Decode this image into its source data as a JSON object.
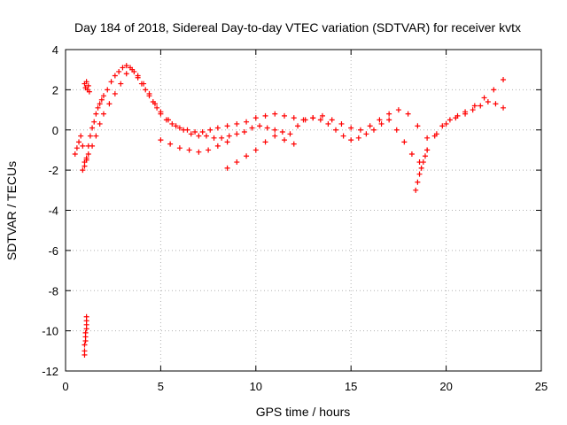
{
  "chart_data": {
    "type": "scatter",
    "title": "Day 184 of 2018, Sidereal Day-to-day VTEC variation (SDTVAR) for receiver kvtx",
    "xlabel": "GPS time / hours",
    "ylabel": "SDTVAR / TECUs",
    "xlim": [
      0,
      25
    ],
    "ylim": [
      -12,
      4
    ],
    "xticks": [
      0,
      5,
      10,
      15,
      20,
      25
    ],
    "yticks": [
      -12,
      -10,
      -8,
      -6,
      -4,
      -2,
      0,
      2,
      4
    ],
    "grid": true,
    "marker": "+",
    "color": "#ff0000",
    "series": [
      {
        "name": "trace-a",
        "x": [
          0.5,
          0.6,
          0.7,
          0.8,
          0.9,
          1.0,
          1.1,
          1.2,
          1.3,
          1.4,
          1.5,
          1.6,
          1.7,
          1.8,
          1.9,
          2.0,
          2.2,
          2.4,
          2.6,
          2.8,
          3.0,
          3.2,
          3.4,
          3.6,
          3.8,
          4.0,
          4.2,
          4.4,
          4.6,
          4.8,
          5.0,
          5.3,
          5.6,
          6.0,
          6.4,
          6.8,
          7.2,
          7.6,
          8.0,
          8.5,
          9.0,
          9.5,
          10.0,
          10.5,
          11.0,
          11.5,
          12.0,
          12.5,
          13.0,
          13.5,
          14.0,
          14.5,
          15.0,
          15.5,
          16.0,
          16.5,
          17.0,
          17.5,
          18.0,
          18.5,
          19.0,
          19.5,
          20.0,
          20.5,
          21.0,
          21.5,
          22.0,
          22.5,
          23.0
        ],
        "y": [
          -1.2,
          -0.9,
          -0.6,
          -0.3,
          -0.8,
          -1.6,
          -1.4,
          -0.8,
          -0.3,
          0.1,
          0.4,
          0.8,
          1.1,
          1.3,
          1.5,
          1.7,
          2.0,
          2.4,
          2.7,
          2.9,
          3.1,
          3.2,
          3.1,
          2.9,
          2.6,
          2.3,
          2.0,
          1.7,
          1.4,
          1.1,
          0.8,
          0.5,
          0.3,
          0.1,
          0.0,
          -0.1,
          -0.1,
          0.0,
          0.1,
          0.2,
          0.3,
          0.4,
          0.6,
          0.7,
          0.8,
          0.7,
          0.6,
          0.5,
          0.6,
          0.7,
          0.5,
          0.3,
          0.1,
          0.0,
          0.2,
          0.5,
          0.8,
          1.0,
          0.8,
          0.2,
          -0.4,
          -0.2,
          0.3,
          0.6,
          0.9,
          1.2,
          1.6,
          2.0,
          2.5
        ]
      },
      {
        "name": "trace-b",
        "x": [
          0.9,
          1.0,
          1.1,
          1.2,
          1.4,
          1.6,
          1.8,
          2.0,
          2.3,
          2.6,
          2.9,
          3.2,
          3.5,
          3.8,
          4.1,
          4.4,
          4.7,
          5.0,
          5.4,
          5.8,
          6.2,
          6.6,
          7.0,
          7.4,
          7.8,
          8.2,
          8.6,
          9.0,
          9.4,
          9.8,
          10.2,
          10.6,
          11.0,
          11.4,
          11.8,
          12.2,
          12.6,
          13.0,
          13.4,
          13.8,
          14.2,
          14.6,
          15.0,
          15.4,
          15.8,
          16.2,
          16.6,
          17.0,
          17.4,
          17.8,
          18.2,
          18.6,
          19.0,
          19.4,
          19.8,
          20.2,
          20.6,
          21.0,
          21.4,
          21.8,
          22.2,
          22.6,
          23.0
        ],
        "y": [
          -2.0,
          -1.8,
          -1.5,
          -1.2,
          -0.8,
          -0.3,
          0.3,
          0.8,
          1.3,
          1.8,
          2.3,
          2.8,
          3.0,
          2.7,
          2.3,
          1.8,
          1.3,
          0.9,
          0.5,
          0.2,
          0.0,
          -0.2,
          -0.3,
          -0.3,
          -0.4,
          -0.4,
          -0.3,
          -0.2,
          -0.1,
          0.1,
          0.2,
          0.1,
          0.0,
          -0.1,
          -0.2,
          0.2,
          0.5,
          0.6,
          0.5,
          0.3,
          0.0,
          -0.3,
          -0.5,
          -0.4,
          -0.2,
          0.0,
          0.3,
          0.5,
          0.0,
          -0.6,
          -1.2,
          -1.6,
          -1.0,
          -0.3,
          0.2,
          0.5,
          0.7,
          0.8,
          1.0,
          1.2,
          1.4,
          1.3,
          1.1
        ]
      },
      {
        "name": "trace-c",
        "x": [
          1.0,
          1.05,
          1.1,
          1.15,
          1.2,
          1.25
        ],
        "y": [
          2.3,
          2.1,
          2.4,
          2.0,
          2.2,
          1.9
        ]
      },
      {
        "name": "trace-d",
        "x": [
          5.0,
          5.5,
          6.0,
          6.5,
          7.0,
          7.5,
          8.0,
          8.5
        ],
        "y": [
          -0.5,
          -0.7,
          -0.9,
          -1.0,
          -1.1,
          -1.0,
          -0.8,
          -0.6
        ]
      },
      {
        "name": "trace-e",
        "x": [
          8.5,
          9.0,
          9.5,
          10.0,
          10.5,
          11.0,
          11.5,
          12.0
        ],
        "y": [
          -1.9,
          -1.6,
          -1.3,
          -1.0,
          -0.6,
          -0.3,
          -0.5,
          -0.7
        ]
      },
      {
        "name": "trace-f",
        "x": [
          18.4,
          18.5,
          18.6,
          18.7,
          18.8,
          18.9,
          19.0
        ],
        "y": [
          -3.0,
          -2.6,
          -2.2,
          -1.9,
          -1.6,
          -1.3,
          -1.0
        ]
      },
      {
        "name": "outlier-cluster",
        "x": [
          1.0,
          1.0,
          1.0,
          1.05,
          1.05,
          1.05,
          1.1,
          1.1,
          1.1,
          1.1
        ],
        "y": [
          -11.2,
          -11.0,
          -10.7,
          -10.5,
          -10.3,
          -10.1,
          -9.9,
          -9.7,
          -9.5,
          -9.3
        ]
      }
    ]
  }
}
